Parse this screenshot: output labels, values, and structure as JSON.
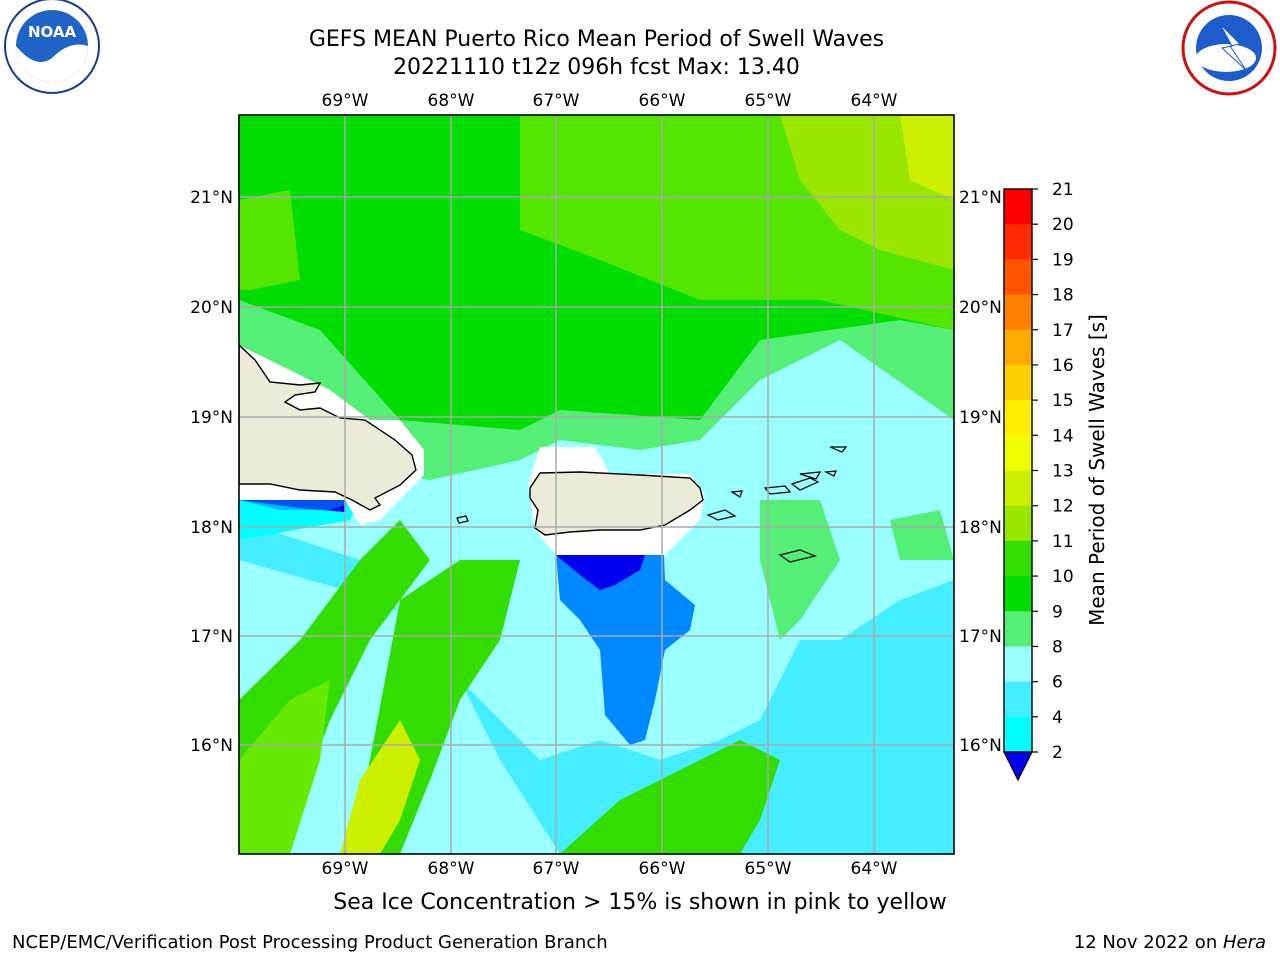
{
  "header": {
    "title_line1": "GEFS MEAN Puerto Rico Mean Period of Swell Waves",
    "title_line2": "20221110 t12z 096h fcst   Max: 13.40"
  },
  "logos": {
    "left": "noaa-logo",
    "right": "nws-logo",
    "noaa_text": "NOAA"
  },
  "map": {
    "lon_ticks": [
      "69°W",
      "68°W",
      "67°W",
      "66°W",
      "65°W",
      "64°W"
    ],
    "lat_ticks": [
      "21°N",
      "20°N",
      "19°N",
      "18°N",
      "17°N",
      "16°N"
    ],
    "colors": {
      "land": "#ecebda",
      "coast": "#000000",
      "grid": "#aaaaaa"
    }
  },
  "colorbar": {
    "label": "Mean Period of Swell Waves [s]",
    "ticks": [
      "21",
      "20",
      "19",
      "18",
      "17",
      "16",
      "15",
      "14",
      "13",
      "12",
      "11",
      "10",
      "9",
      "8",
      "6",
      "4",
      "2"
    ],
    "colors": [
      "#ff0000",
      "#ff2a00",
      "#ff5500",
      "#ff8000",
      "#ffaa00",
      "#ffd000",
      "#ffee00",
      "#f0ff00",
      "#ccf000",
      "#99e600",
      "#33dd00",
      "#00dd00",
      "#55ee77",
      "#99ffff",
      "#44eeff",
      "#00ffff",
      "#0088ff",
      "#0000ee"
    ]
  },
  "caption": "Sea Ice Concentration > 15% is shown in pink to yellow",
  "footer": {
    "left": "NCEP/EMC/Verification Post Processing Product Generation Branch",
    "right_prefix": "12 Nov 2022 on ",
    "right_italic": "Hera"
  }
}
